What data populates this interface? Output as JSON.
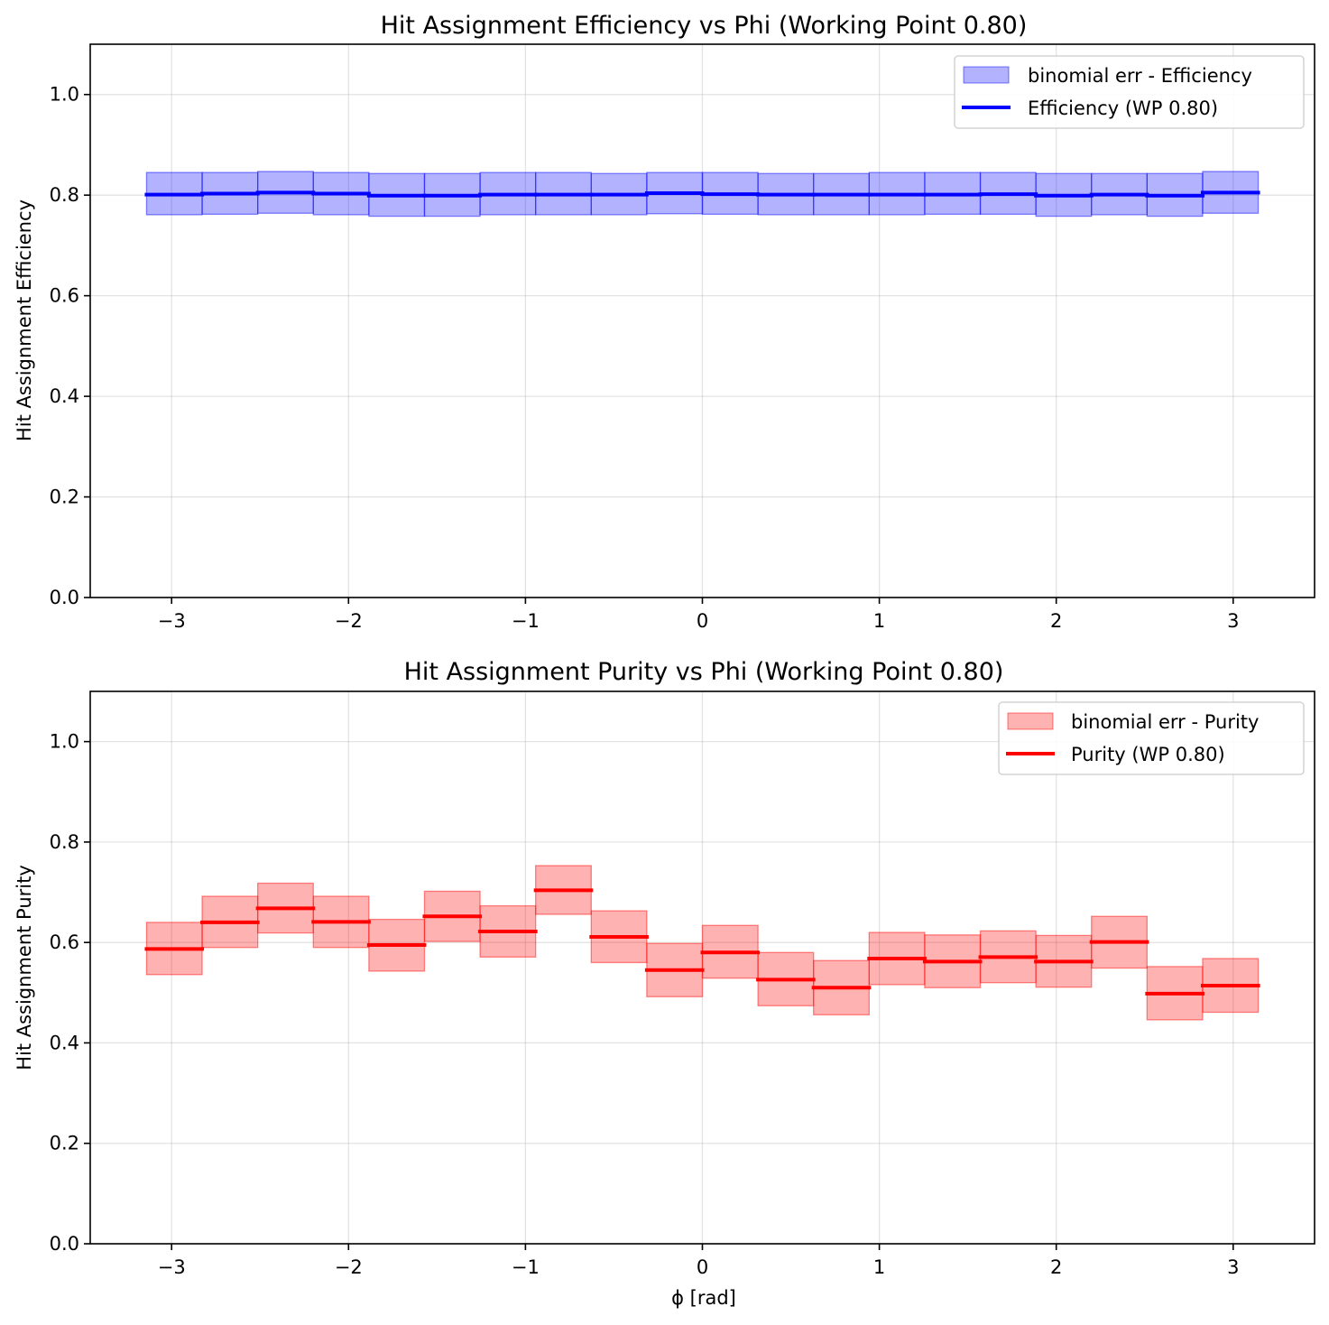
{
  "chart_data": [
    {
      "type": "line",
      "title": "Hit Assignment Efficiency vs Phi (Working Point 0.80)",
      "xlabel": "",
      "ylabel": "Hit Assignment Efficiency",
      "xlim": [
        -3.46,
        3.46
      ],
      "ylim": [
        0,
        1.1
      ],
      "xticks": [
        -3,
        -2,
        -1,
        0,
        1,
        2,
        3
      ],
      "xtick_labels": [
        "−3",
        "−2",
        "−1",
        "0",
        "1",
        "2",
        "3"
      ],
      "yticks": [
        0,
        0.2,
        0.4,
        0.6,
        0.8,
        1.0
      ],
      "ytick_labels": [
        "0.0",
        "0.2",
        "0.4",
        "0.6",
        "0.8",
        "1.0"
      ],
      "grid": true,
      "legend_position": "top-right",
      "bin_edges": [
        -3.1416,
        -2.8274,
        -2.5133,
        -2.1991,
        -1.885,
        -1.5708,
        -1.2566,
        -0.9425,
        -0.6283,
        -0.3142,
        0,
        0.3142,
        0.6283,
        0.9425,
        1.2566,
        1.5708,
        1.885,
        2.1991,
        2.5133,
        2.8274,
        3.1416
      ],
      "series": [
        {
          "name": "Efficiency (WP 0.80)",
          "band_name": "binomial err - Efficiency",
          "color": "#0000ff",
          "band_color": "#0000ff",
          "values": [
            0.801,
            0.803,
            0.805,
            0.803,
            0.799,
            0.799,
            0.801,
            0.801,
            0.801,
            0.804,
            0.802,
            0.801,
            0.801,
            0.801,
            0.801,
            0.802,
            0.799,
            0.801,
            0.799,
            0.805
          ],
          "err_low": [
            0.761,
            0.762,
            0.764,
            0.761,
            0.758,
            0.758,
            0.761,
            0.761,
            0.761,
            0.763,
            0.762,
            0.761,
            0.761,
            0.761,
            0.762,
            0.762,
            0.758,
            0.761,
            0.758,
            0.764
          ],
          "err_high": [
            0.845,
            0.845,
            0.847,
            0.845,
            0.843,
            0.843,
            0.845,
            0.845,
            0.843,
            0.845,
            0.845,
            0.843,
            0.843,
            0.845,
            0.845,
            0.845,
            0.843,
            0.843,
            0.843,
            0.847
          ]
        }
      ]
    },
    {
      "type": "line",
      "title": "Hit Assignment Purity vs Phi (Working Point 0.80)",
      "xlabel": "ϕ [rad]",
      "ylabel": "Hit Assignment Purity",
      "xlim": [
        -3.46,
        3.46
      ],
      "ylim": [
        0,
        1.1
      ],
      "xticks": [
        -3,
        -2,
        -1,
        0,
        1,
        2,
        3
      ],
      "xtick_labels": [
        "−3",
        "−2",
        "−1",
        "0",
        "1",
        "2",
        "3"
      ],
      "yticks": [
        0,
        0.2,
        0.4,
        0.6,
        0.8,
        1.0
      ],
      "ytick_labels": [
        "0.0",
        "0.2",
        "0.4",
        "0.6",
        "0.8",
        "1.0"
      ],
      "grid": true,
      "legend_position": "top-right",
      "bin_edges": [
        -3.1416,
        -2.8274,
        -2.5133,
        -2.1991,
        -1.885,
        -1.5708,
        -1.2566,
        -0.9425,
        -0.6283,
        -0.3142,
        0,
        0.3142,
        0.6283,
        0.9425,
        1.2566,
        1.5708,
        1.885,
        2.1991,
        2.5133,
        2.8274,
        3.1416
      ],
      "series": [
        {
          "name": "Purity (WP 0.80)",
          "band_name": "binomial err - Purity",
          "color": "#ff0000",
          "band_color": "#ff0000",
          "values": [
            0.587,
            0.64,
            0.668,
            0.641,
            0.595,
            0.652,
            0.622,
            0.704,
            0.611,
            0.545,
            0.58,
            0.526,
            0.51,
            0.568,
            0.562,
            0.571,
            0.562,
            0.601,
            0.498,
            0.514
          ],
          "err_low": [
            0.536,
            0.59,
            0.619,
            0.59,
            0.543,
            0.602,
            0.571,
            0.656,
            0.56,
            0.492,
            0.529,
            0.474,
            0.456,
            0.516,
            0.51,
            0.52,
            0.511,
            0.549,
            0.446,
            0.461
          ],
          "err_high": [
            0.64,
            0.692,
            0.718,
            0.692,
            0.646,
            0.702,
            0.673,
            0.753,
            0.663,
            0.598,
            0.634,
            0.58,
            0.564,
            0.62,
            0.615,
            0.623,
            0.614,
            0.652,
            0.552,
            0.568
          ]
        }
      ]
    }
  ]
}
